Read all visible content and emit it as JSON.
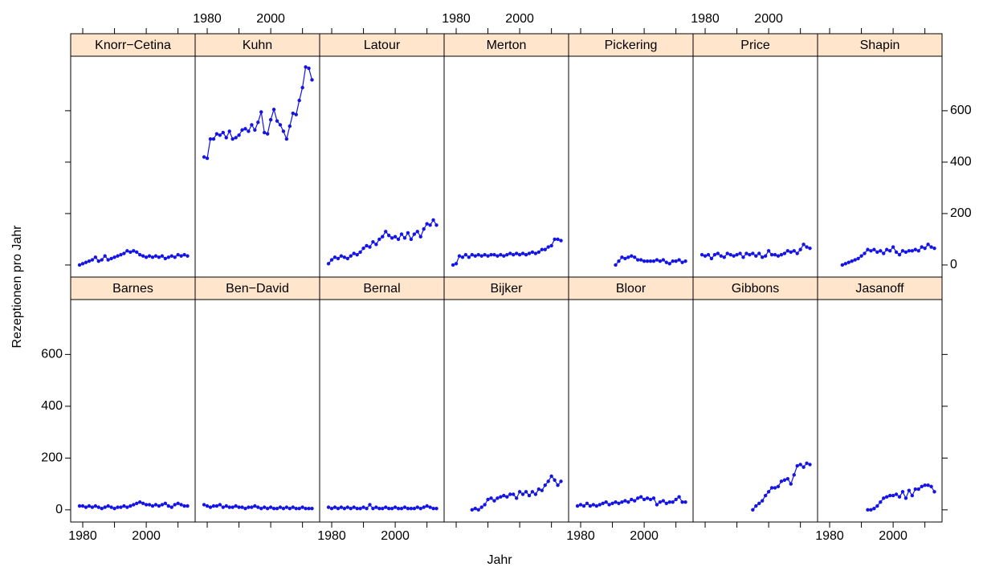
{
  "chart_data": {
    "type": "line",
    "xlabel": "Jahr",
    "ylabel": "Rezeptionen pro Jahr",
    "color": "#1414e6",
    "strip_color": "#ffe5cc",
    "xlim": [
      1976.2,
      2015.4
    ],
    "ylim": [
      -47,
      812
    ],
    "xticks": [
      1980,
      2000
    ],
    "xminor": [
      1990,
      2010
    ],
    "yticks": [
      0,
      200,
      400,
      600
    ],
    "x": [
      1979,
      1980,
      1981,
      1982,
      1983,
      1984,
      1985,
      1986,
      1987,
      1988,
      1989,
      1990,
      1991,
      1992,
      1993,
      1994,
      1995,
      1996,
      1997,
      1998,
      1999,
      2000,
      2001,
      2002,
      2003,
      2004,
      2005,
      2006,
      2007,
      2008,
      2009,
      2010,
      2011,
      2012,
      2013
    ],
    "panels": [
      {
        "name": "Knorr−Cetina",
        "values": [
          0,
          5,
          10,
          15,
          20,
          30,
          15,
          20,
          35,
          20,
          25,
          30,
          35,
          40,
          45,
          55,
          50,
          55,
          50,
          40,
          35,
          30,
          35,
          30,
          35,
          30,
          35,
          25,
          30,
          35,
          30,
          40,
          35,
          40,
          35
        ]
      },
      {
        "name": "Kuhn",
        "values": [
          420,
          415,
          490,
          490,
          510,
          505,
          515,
          495,
          520,
          490,
          495,
          505,
          525,
          530,
          520,
          545,
          525,
          555,
          595,
          515,
          510,
          565,
          605,
          560,
          545,
          520,
          490,
          540,
          590,
          585,
          640,
          690,
          770,
          765,
          720
        ]
      },
      {
        "name": "Latour",
        "values": [
          5,
          20,
          30,
          25,
          35,
          30,
          25,
          35,
          45,
          40,
          50,
          65,
          75,
          70,
          90,
          80,
          100,
          110,
          130,
          115,
          105,
          110,
          100,
          120,
          105,
          125,
          100,
          120,
          130,
          110,
          140,
          160,
          155,
          175,
          155
        ]
      },
      {
        "name": "Merton",
        "values": [
          0,
          5,
          35,
          30,
          40,
          30,
          40,
          35,
          40,
          35,
          40,
          35,
          40,
          40,
          35,
          40,
          35,
          40,
          45,
          40,
          45,
          40,
          45,
          40,
          45,
          50,
          45,
          50,
          60,
          60,
          70,
          75,
          100,
          100,
          95
        ]
      },
      {
        "name": "Pickering",
        "values": [
          null,
          null,
          null,
          null,
          null,
          null,
          null,
          null,
          null,
          null,
          null,
          null,
          0,
          15,
          30,
          25,
          30,
          35,
          30,
          20,
          20,
          15,
          15,
          15,
          15,
          20,
          15,
          20,
          10,
          5,
          15,
          15,
          20,
          10,
          15
        ]
      },
      {
        "name": "Price",
        "values": [
          40,
          35,
          40,
          25,
          40,
          45,
          35,
          30,
          45,
          40,
          35,
          40,
          45,
          30,
          45,
          40,
          45,
          35,
          45,
          30,
          35,
          55,
          40,
          40,
          35,
          40,
          45,
          55,
          50,
          55,
          45,
          60,
          80,
          70,
          65
        ]
      },
      {
        "name": "Shapin",
        "values": [
          null,
          null,
          null,
          null,
          null,
          0,
          5,
          10,
          15,
          20,
          25,
          35,
          45,
          60,
          55,
          60,
          50,
          55,
          45,
          60,
          55,
          70,
          50,
          40,
          55,
          50,
          55,
          55,
          60,
          55,
          70,
          65,
          80,
          70,
          65
        ]
      },
      {
        "name": "Barnes",
        "values": [
          15,
          15,
          10,
          15,
          10,
          15,
          10,
          5,
          10,
          15,
          10,
          5,
          10,
          10,
          15,
          10,
          15,
          20,
          25,
          30,
          25,
          20,
          20,
          15,
          20,
          15,
          20,
          25,
          15,
          10,
          20,
          25,
          20,
          15,
          15
        ]
      },
      {
        "name": "Ben−David",
        "values": [
          20,
          15,
          10,
          15,
          15,
          20,
          10,
          15,
          10,
          10,
          15,
          10,
          10,
          5,
          10,
          10,
          15,
          10,
          5,
          10,
          5,
          10,
          5,
          5,
          10,
          5,
          10,
          5,
          10,
          5,
          5,
          10,
          5,
          5,
          5
        ]
      },
      {
        "name": "Bernal",
        "values": [
          10,
          5,
          10,
          5,
          10,
          5,
          10,
          5,
          10,
          5,
          5,
          10,
          5,
          20,
          5,
          10,
          5,
          5,
          10,
          5,
          5,
          10,
          5,
          5,
          10,
          5,
          5,
          5,
          10,
          5,
          10,
          15,
          10,
          5,
          5
        ]
      },
      {
        "name": "Bijker",
        "values": [
          null,
          null,
          null,
          null,
          null,
          null,
          0,
          5,
          0,
          10,
          20,
          40,
          45,
          35,
          45,
          50,
          55,
          50,
          60,
          60,
          45,
          70,
          60,
          70,
          55,
          70,
          60,
          80,
          75,
          95,
          110,
          130,
          115,
          95,
          110
        ]
      },
      {
        "name": "Bloor",
        "values": [
          15,
          20,
          15,
          25,
          15,
          20,
          15,
          20,
          25,
          30,
          20,
          25,
          30,
          25,
          30,
          35,
          30,
          40,
          35,
          45,
          50,
          40,
          45,
          40,
          45,
          20,
          30,
          35,
          25,
          30,
          30,
          40,
          50,
          30,
          30
        ]
      },
      {
        "name": "Gibbons",
        "values": [
          null,
          null,
          null,
          null,
          null,
          null,
          null,
          null,
          null,
          null,
          null,
          null,
          null,
          null,
          null,
          null,
          0,
          15,
          25,
          35,
          55,
          70,
          85,
          85,
          90,
          110,
          115,
          120,
          100,
          135,
          170,
          175,
          165,
          180,
          175
        ]
      },
      {
        "name": "Jasanoff",
        "values": [
          null,
          null,
          null,
          null,
          null,
          null,
          null,
          null,
          null,
          null,
          null,
          null,
          null,
          0,
          0,
          5,
          15,
          30,
          45,
          50,
          55,
          55,
          60,
          50,
          70,
          45,
          75,
          55,
          80,
          80,
          90,
          95,
          95,
          90,
          70
        ]
      }
    ]
  }
}
